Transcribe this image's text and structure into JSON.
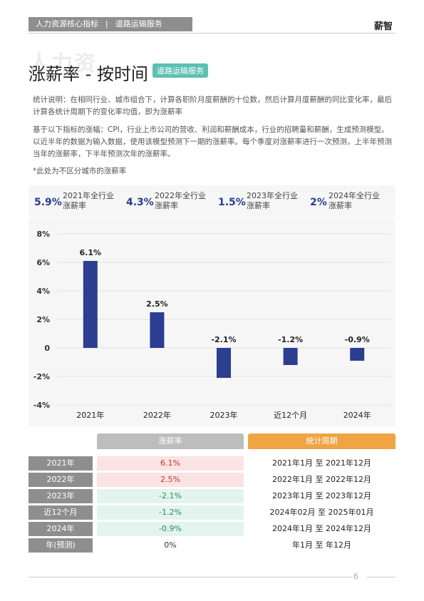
{
  "header": {
    "breadcrumb_1": "人力资源核心指标",
    "breadcrumb_sep": "|",
    "breadcrumb_2": "道路运输服务",
    "brand": "薪智"
  },
  "title": {
    "ghost": "人力资",
    "main": "涨薪率 - 按时间",
    "tag": "道路运输服务"
  },
  "description": {
    "p1": "统计说明：在相同行业、城市组合下，计算各职阶月度薪酬的十位数，然后计算月度薪酬的同比变化率，最后计算各统计周期下的变化率均值，即为涨薪率",
    "p2": "基于以下指标的涨幅：CPI，行业上市公司的营收、利润和薪酬成本，行业的招聘量和薪酬，生成预测模型。以近半年的数据为输入数据，使用该模型预测下一期的涨薪率。每个季度对涨薪率进行一次预测，上半年预测当年的涨薪率，下半年预测次年的涨薪率。",
    "note": "*此处为不区分城市的涨薪率"
  },
  "kpis": [
    {
      "value": "5.9%",
      "label1": "2021年全行业",
      "label2": "涨薪率"
    },
    {
      "value": "4.3%",
      "label1": "2022年全行业",
      "label2": "涨薪率"
    },
    {
      "value": "1.5%",
      "label1": "2023年全行业",
      "label2": "涨薪率"
    },
    {
      "value": "2%",
      "label1": "2024年全行业",
      "label2": "涨薪率"
    }
  ],
  "chart_data": {
    "type": "bar",
    "categories": [
      "2021年",
      "2022年",
      "2023年",
      "近12个月",
      "2024年"
    ],
    "values": [
      6.1,
      2.5,
      -2.1,
      -1.2,
      -0.9
    ],
    "data_labels": [
      "6.1%",
      "2.5%",
      "-2.1%",
      "-1.2%",
      "-0.9%"
    ],
    "y_ticks": [
      "8%",
      "6%",
      "4%",
      "2%",
      "0",
      "-2%",
      "-4%"
    ],
    "ylim": [
      -4,
      8
    ],
    "grid": true,
    "bar_color": "#2b3e8f"
  },
  "table": {
    "head_rate": "涨薪率",
    "head_period": "统计周期",
    "rows": [
      {
        "label": "2021年",
        "rate": "6.1%",
        "period": "2021年1月 至 2021年12月",
        "tone": "pos"
      },
      {
        "label": "2022年",
        "rate": "2.5%",
        "period": "2022年1月 至 2022年12月",
        "tone": "pos"
      },
      {
        "label": "2023年",
        "rate": "-2.1%",
        "period": "2023年1月 至 2023年12月",
        "tone": "neg"
      },
      {
        "label": "近12个月",
        "rate": "-1.2%",
        "period": "2024年02月 至 2025年01月",
        "tone": "neg"
      },
      {
        "label": "2024年",
        "rate": "-0.9%",
        "period": "2024年1月 至 2024年12月",
        "tone": "neg"
      },
      {
        "label": "年(预测)",
        "rate": "0%",
        "period": "年1月 至 年12月",
        "tone": "none"
      }
    ]
  },
  "colors": {
    "pos_bg": "#fbe3e3",
    "pos_text": "#c0392b",
    "neg_bg": "#e3f4ee",
    "neg_text": "#2e8b57",
    "head_rate": "#bdbdbd",
    "head_period": "#f0a545"
  },
  "footer": {
    "page": "6"
  }
}
